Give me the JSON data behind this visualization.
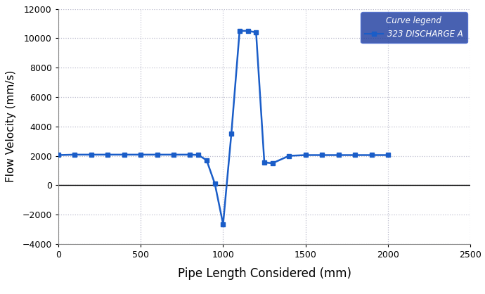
{
  "x": [
    0,
    100,
    200,
    300,
    400,
    500,
    600,
    700,
    800,
    850,
    900,
    950,
    1000,
    1050,
    1100,
    1150,
    1200,
    1250,
    1300,
    1400,
    1500,
    1600,
    1700,
    1800,
    1900,
    2000
  ],
  "y": [
    2050,
    2080,
    2080,
    2080,
    2080,
    2080,
    2080,
    2080,
    2080,
    2060,
    1700,
    100,
    -2650,
    3500,
    10500,
    10500,
    10400,
    1550,
    1500,
    2000,
    2050,
    2050,
    2050,
    2050,
    2050,
    2050
  ],
  "line_color": "#1a5dc8",
  "marker": "s",
  "marker_color": "#1a5dc8",
  "marker_size": 5,
  "title": "",
  "xlabel": "Pipe Length Considered (mm)",
  "ylabel": "Flow Velocity (mm/s)",
  "xlim": [
    0,
    2500
  ],
  "ylim": [
    -4000,
    12000
  ],
  "xticks": [
    0,
    500,
    1000,
    1500,
    2000,
    2500
  ],
  "yticks": [
    -4000,
    -2000,
    0,
    2000,
    4000,
    6000,
    8000,
    10000,
    12000
  ],
  "grid_color": "#c0c0d0",
  "background_color": "#ffffff",
  "legend_title": "Curve legend",
  "legend_label": "323 DISCHARGE A",
  "legend_bg": "#1a3a9e",
  "legend_text_color": "#ffffff",
  "xlabel_fontsize": 12,
  "ylabel_fontsize": 11,
  "tick_fontsize": 9,
  "linewidth": 1.8
}
